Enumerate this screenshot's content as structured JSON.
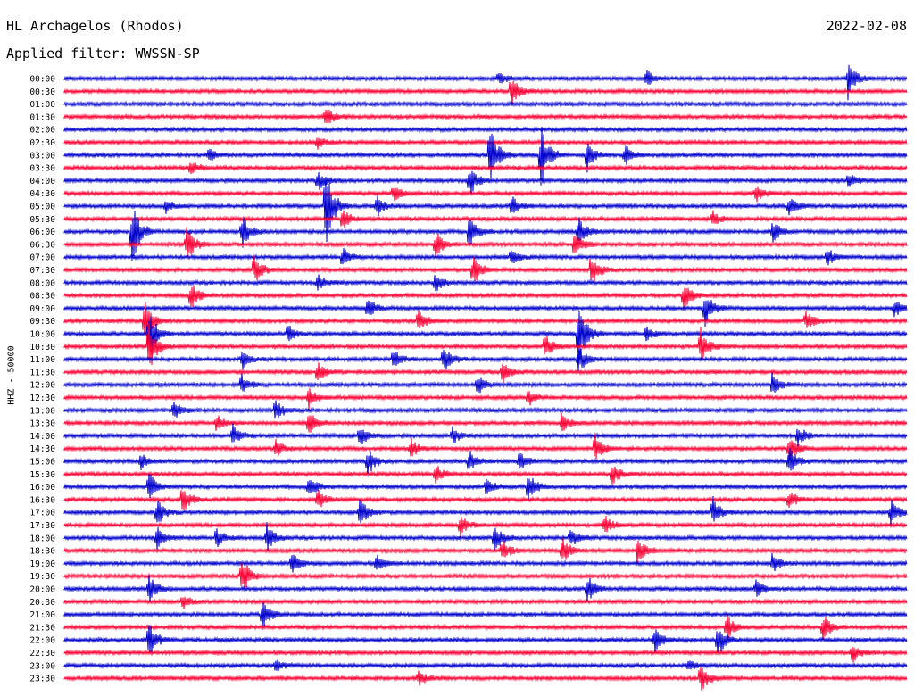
{
  "header": {
    "station": "HL Archagelos (Rhodos)",
    "date": "2022-02-08",
    "filter": "Applied filter: WWSSN-SP"
  },
  "axis": {
    "ylabel": "HHZ - 50000"
  },
  "colors": {
    "even_trace": "#0000cc",
    "odd_trace": "#ff0033",
    "background": "#ffffff"
  },
  "chart_data": {
    "type": "line",
    "title": "HL Archagelos (Rhodos)",
    "xlabel": "",
    "ylabel": "HHZ - 50000",
    "grid": false,
    "legend": "none",
    "rows": [
      "00:00",
      "00:30",
      "01:00",
      "01:30",
      "02:00",
      "02:30",
      "03:00",
      "03:30",
      "04:00",
      "04:30",
      "05:00",
      "05:30",
      "06:00",
      "06:30",
      "07:00",
      "07:30",
      "08:00",
      "08:30",
      "09:00",
      "09:30",
      "10:00",
      "10:30",
      "11:00",
      "11:30",
      "12:00",
      "12:30",
      "13:00",
      "13:30",
      "14:00",
      "14:30",
      "15:00",
      "15:30",
      "16:00",
      "16:30",
      "17:00",
      "17:30",
      "18:00",
      "18:30",
      "19:00",
      "19:30",
      "20:00",
      "20:30",
      "21:00",
      "21:30",
      "22:00",
      "22:30",
      "23:00",
      "23:30"
    ],
    "events": [
      {
        "row": 0,
        "x": 0.515,
        "amp": 0.4
      },
      {
        "row": 0,
        "x": 0.69,
        "amp": 0.5
      },
      {
        "row": 0,
        "x": 0.93,
        "amp": 1.1
      },
      {
        "row": 1,
        "x": 0.53,
        "amp": 1.0
      },
      {
        "row": 3,
        "x": 0.31,
        "amp": 0.6
      },
      {
        "row": 5,
        "x": 0.3,
        "amp": 0.4
      },
      {
        "row": 6,
        "x": 0.505,
        "amp": 1.8
      },
      {
        "row": 6,
        "x": 0.565,
        "amp": 1.8
      },
      {
        "row": 6,
        "x": 0.62,
        "amp": 1.0
      },
      {
        "row": 6,
        "x": 0.665,
        "amp": 0.6
      },
      {
        "row": 6,
        "x": 0.17,
        "amp": 0.4
      },
      {
        "row": 7,
        "x": 0.15,
        "amp": 0.4
      },
      {
        "row": 8,
        "x": 0.48,
        "amp": 1.0
      },
      {
        "row": 8,
        "x": 0.3,
        "amp": 0.6
      },
      {
        "row": 8,
        "x": 0.93,
        "amp": 0.5
      },
      {
        "row": 9,
        "x": 0.39,
        "amp": 0.5
      },
      {
        "row": 9,
        "x": 0.82,
        "amp": 0.5
      },
      {
        "row": 10,
        "x": 0.31,
        "amp": 2.2
      },
      {
        "row": 10,
        "x": 0.12,
        "amp": 0.4
      },
      {
        "row": 10,
        "x": 0.37,
        "amp": 0.6
      },
      {
        "row": 10,
        "x": 0.53,
        "amp": 0.6
      },
      {
        "row": 10,
        "x": 0.86,
        "amp": 0.6
      },
      {
        "row": 11,
        "x": 0.33,
        "amp": 0.6
      },
      {
        "row": 11,
        "x": 0.77,
        "amp": 0.4
      },
      {
        "row": 12,
        "x": 0.08,
        "amp": 2.0
      },
      {
        "row": 12,
        "x": 0.21,
        "amp": 1.0
      },
      {
        "row": 12,
        "x": 0.48,
        "amp": 1.0
      },
      {
        "row": 12,
        "x": 0.61,
        "amp": 0.8
      },
      {
        "row": 12,
        "x": 0.84,
        "amp": 0.6
      },
      {
        "row": 13,
        "x": 0.145,
        "amp": 1.0
      },
      {
        "row": 13,
        "x": 0.44,
        "amp": 0.8
      },
      {
        "row": 13,
        "x": 0.605,
        "amp": 0.8
      },
      {
        "row": 14,
        "x": 0.33,
        "amp": 0.6
      },
      {
        "row": 14,
        "x": 0.53,
        "amp": 0.5
      },
      {
        "row": 14,
        "x": 0.905,
        "amp": 0.6
      },
      {
        "row": 15,
        "x": 0.225,
        "amp": 0.8
      },
      {
        "row": 15,
        "x": 0.485,
        "amp": 0.8
      },
      {
        "row": 15,
        "x": 0.625,
        "amp": 1.0
      },
      {
        "row": 16,
        "x": 0.3,
        "amp": 0.5
      },
      {
        "row": 16,
        "x": 0.44,
        "amp": 0.6
      },
      {
        "row": 17,
        "x": 0.15,
        "amp": 0.8
      },
      {
        "row": 17,
        "x": 0.735,
        "amp": 0.8
      },
      {
        "row": 18,
        "x": 0.36,
        "amp": 0.6
      },
      {
        "row": 18,
        "x": 0.76,
        "amp": 1.0
      },
      {
        "row": 18,
        "x": 0.985,
        "amp": 0.5
      },
      {
        "row": 19,
        "x": 0.095,
        "amp": 1.3
      },
      {
        "row": 19,
        "x": 0.42,
        "amp": 0.6
      },
      {
        "row": 19,
        "x": 0.88,
        "amp": 0.6
      },
      {
        "row": 20,
        "x": 0.1,
        "amp": 1.5
      },
      {
        "row": 20,
        "x": 0.61,
        "amp": 1.8
      },
      {
        "row": 20,
        "x": 0.265,
        "amp": 0.5
      },
      {
        "row": 20,
        "x": 0.69,
        "amp": 0.5
      },
      {
        "row": 21,
        "x": 0.1,
        "amp": 1.6
      },
      {
        "row": 21,
        "x": 0.57,
        "amp": 0.8
      },
      {
        "row": 21,
        "x": 0.755,
        "amp": 1.0
      },
      {
        "row": 22,
        "x": 0.21,
        "amp": 0.6
      },
      {
        "row": 22,
        "x": 0.39,
        "amp": 0.6
      },
      {
        "row": 22,
        "x": 0.45,
        "amp": 0.8
      },
      {
        "row": 22,
        "x": 0.61,
        "amp": 0.8
      },
      {
        "row": 23,
        "x": 0.3,
        "amp": 0.6
      },
      {
        "row": 23,
        "x": 0.52,
        "amp": 0.6
      },
      {
        "row": 24,
        "x": 0.21,
        "amp": 0.6
      },
      {
        "row": 24,
        "x": 0.49,
        "amp": 0.6
      },
      {
        "row": 24,
        "x": 0.84,
        "amp": 0.6
      },
      {
        "row": 25,
        "x": 0.29,
        "amp": 0.6
      },
      {
        "row": 25,
        "x": 0.55,
        "amp": 0.5
      },
      {
        "row": 26,
        "x": 0.13,
        "amp": 0.5
      },
      {
        "row": 26,
        "x": 0.25,
        "amp": 0.6
      },
      {
        "row": 27,
        "x": 0.18,
        "amp": 0.5
      },
      {
        "row": 27,
        "x": 0.29,
        "amp": 0.6
      },
      {
        "row": 27,
        "x": 0.59,
        "amp": 0.5
      },
      {
        "row": 28,
        "x": 0.2,
        "amp": 0.6
      },
      {
        "row": 28,
        "x": 0.35,
        "amp": 0.6
      },
      {
        "row": 28,
        "x": 0.46,
        "amp": 0.5
      },
      {
        "row": 28,
        "x": 0.87,
        "amp": 0.6
      },
      {
        "row": 29,
        "x": 0.25,
        "amp": 0.5
      },
      {
        "row": 29,
        "x": 0.41,
        "amp": 0.6
      },
      {
        "row": 29,
        "x": 0.63,
        "amp": 0.8
      },
      {
        "row": 29,
        "x": 0.86,
        "amp": 0.8
      },
      {
        "row": 30,
        "x": 0.09,
        "amp": 0.5
      },
      {
        "row": 30,
        "x": 0.36,
        "amp": 0.8
      },
      {
        "row": 30,
        "x": 0.48,
        "amp": 0.6
      },
      {
        "row": 30,
        "x": 0.54,
        "amp": 0.6
      },
      {
        "row": 30,
        "x": 0.86,
        "amp": 0.8
      },
      {
        "row": 31,
        "x": 0.44,
        "amp": 0.6
      },
      {
        "row": 31,
        "x": 0.65,
        "amp": 0.6
      },
      {
        "row": 32,
        "x": 0.1,
        "amp": 0.8
      },
      {
        "row": 32,
        "x": 0.29,
        "amp": 0.6
      },
      {
        "row": 32,
        "x": 0.5,
        "amp": 0.6
      },
      {
        "row": 32,
        "x": 0.55,
        "amp": 0.8
      },
      {
        "row": 33,
        "x": 0.14,
        "amp": 0.8
      },
      {
        "row": 33,
        "x": 0.3,
        "amp": 0.6
      },
      {
        "row": 33,
        "x": 0.86,
        "amp": 0.5
      },
      {
        "row": 34,
        "x": 0.11,
        "amp": 0.8
      },
      {
        "row": 34,
        "x": 0.35,
        "amp": 0.8
      },
      {
        "row": 34,
        "x": 0.77,
        "amp": 0.8
      },
      {
        "row": 34,
        "x": 0.98,
        "amp": 0.8
      },
      {
        "row": 35,
        "x": 0.47,
        "amp": 0.6
      },
      {
        "row": 35,
        "x": 0.64,
        "amp": 0.6
      },
      {
        "row": 36,
        "x": 0.11,
        "amp": 0.6
      },
      {
        "row": 36,
        "x": 0.18,
        "amp": 0.6
      },
      {
        "row": 36,
        "x": 0.24,
        "amp": 0.8
      },
      {
        "row": 36,
        "x": 0.51,
        "amp": 0.8
      },
      {
        "row": 36,
        "x": 0.6,
        "amp": 0.6
      },
      {
        "row": 37,
        "x": 0.52,
        "amp": 0.6
      },
      {
        "row": 37,
        "x": 0.59,
        "amp": 0.8
      },
      {
        "row": 37,
        "x": 0.68,
        "amp": 0.8
      },
      {
        "row": 38,
        "x": 0.27,
        "amp": 0.6
      },
      {
        "row": 38,
        "x": 0.37,
        "amp": 0.5
      },
      {
        "row": 38,
        "x": 0.84,
        "amp": 0.5
      },
      {
        "row": 39,
        "x": 0.21,
        "amp": 1.2
      },
      {
        "row": 40,
        "x": 0.1,
        "amp": 0.8
      },
      {
        "row": 40,
        "x": 0.62,
        "amp": 0.8
      },
      {
        "row": 40,
        "x": 0.82,
        "amp": 0.6
      },
      {
        "row": 41,
        "x": 0.14,
        "amp": 0.4
      },
      {
        "row": 42,
        "x": 0.235,
        "amp": 0.8
      },
      {
        "row": 43,
        "x": 0.785,
        "amp": 0.8
      },
      {
        "row": 43,
        "x": 0.9,
        "amp": 0.8
      },
      {
        "row": 44,
        "x": 0.1,
        "amp": 1.0
      },
      {
        "row": 44,
        "x": 0.7,
        "amp": 0.8
      },
      {
        "row": 44,
        "x": 0.775,
        "amp": 1.0
      },
      {
        "row": 45,
        "x": 0.935,
        "amp": 0.6
      },
      {
        "row": 46,
        "x": 0.25,
        "amp": 0.4
      },
      {
        "row": 46,
        "x": 0.74,
        "amp": 0.3
      },
      {
        "row": 47,
        "x": 0.42,
        "amp": 0.4
      },
      {
        "row": 47,
        "x": 0.755,
        "amp": 0.8
      }
    ]
  }
}
